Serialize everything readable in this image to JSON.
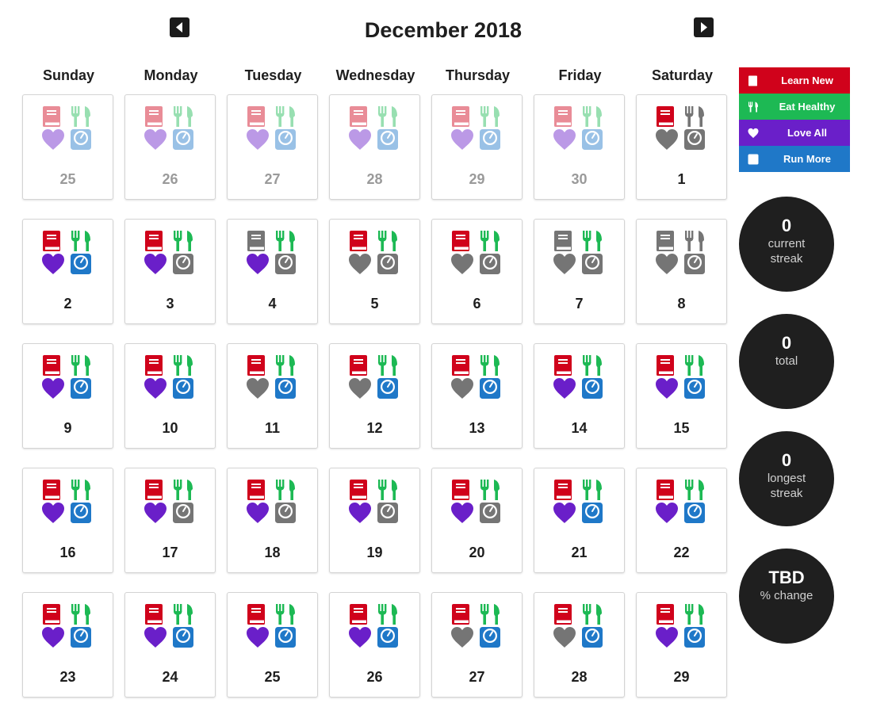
{
  "header": {
    "title": "December 2018",
    "prev_icon": "caret-left-icon",
    "next_icon": "caret-right-icon"
  },
  "weekdays": [
    "Sunday",
    "Monday",
    "Tuesday",
    "Wednesday",
    "Thursday",
    "Friday",
    "Saturday"
  ],
  "colors": {
    "learn": "#d0021b",
    "eat": "#1db954",
    "love": "#6a1fc9",
    "run": "#1f78c8",
    "off": "#757575",
    "stat_bg": "#1f1f1f"
  },
  "legend": [
    {
      "key": "learn",
      "label": "Learn New",
      "color": "#d0021b",
      "icon": "book-icon"
    },
    {
      "key": "eat",
      "label": "Eat Healthy",
      "color": "#1db954",
      "icon": "fork-knife-icon"
    },
    {
      "key": "love",
      "label": "Love All",
      "color": "#6a1fc9",
      "icon": "heart-icon"
    },
    {
      "key": "run",
      "label": "Run More",
      "color": "#1f78c8",
      "icon": "scale-icon"
    }
  ],
  "stats": [
    {
      "value": "0",
      "label": "current streak"
    },
    {
      "value": "0",
      "label": "total"
    },
    {
      "value": "0",
      "label": "longest streak"
    },
    {
      "value": "TBD",
      "label": "% change"
    }
  ],
  "days": [
    {
      "date": "25",
      "muted": true,
      "learn": true,
      "eat": true,
      "love": true,
      "run": true
    },
    {
      "date": "26",
      "muted": true,
      "learn": true,
      "eat": true,
      "love": true,
      "run": true
    },
    {
      "date": "27",
      "muted": true,
      "learn": true,
      "eat": true,
      "love": true,
      "run": true
    },
    {
      "date": "28",
      "muted": true,
      "learn": true,
      "eat": true,
      "love": true,
      "run": true
    },
    {
      "date": "29",
      "muted": true,
      "learn": true,
      "eat": true,
      "love": true,
      "run": true
    },
    {
      "date": "30",
      "muted": true,
      "learn": true,
      "eat": true,
      "love": true,
      "run": true
    },
    {
      "date": "1",
      "muted": false,
      "learn": true,
      "eat": false,
      "love": false,
      "run": false
    },
    {
      "date": "2",
      "muted": false,
      "learn": true,
      "eat": true,
      "love": true,
      "run": true
    },
    {
      "date": "3",
      "muted": false,
      "learn": true,
      "eat": true,
      "love": true,
      "run": false
    },
    {
      "date": "4",
      "muted": false,
      "learn": false,
      "eat": true,
      "love": true,
      "run": false
    },
    {
      "date": "5",
      "muted": false,
      "learn": true,
      "eat": true,
      "love": false,
      "run": false
    },
    {
      "date": "6",
      "muted": false,
      "learn": true,
      "eat": true,
      "love": false,
      "run": false
    },
    {
      "date": "7",
      "muted": false,
      "learn": false,
      "eat": true,
      "love": false,
      "run": false
    },
    {
      "date": "8",
      "muted": false,
      "learn": false,
      "eat": false,
      "love": false,
      "run": false
    },
    {
      "date": "9",
      "muted": false,
      "learn": true,
      "eat": true,
      "love": true,
      "run": true
    },
    {
      "date": "10",
      "muted": false,
      "learn": true,
      "eat": true,
      "love": true,
      "run": true
    },
    {
      "date": "11",
      "muted": false,
      "learn": true,
      "eat": true,
      "love": false,
      "run": true
    },
    {
      "date": "12",
      "muted": false,
      "learn": true,
      "eat": true,
      "love": false,
      "run": true
    },
    {
      "date": "13",
      "muted": false,
      "learn": true,
      "eat": true,
      "love": false,
      "run": true
    },
    {
      "date": "14",
      "muted": false,
      "learn": true,
      "eat": true,
      "love": true,
      "run": true
    },
    {
      "date": "15",
      "muted": false,
      "learn": true,
      "eat": true,
      "love": true,
      "run": true
    },
    {
      "date": "16",
      "muted": false,
      "learn": true,
      "eat": true,
      "love": true,
      "run": true
    },
    {
      "date": "17",
      "muted": false,
      "learn": true,
      "eat": true,
      "love": true,
      "run": false
    },
    {
      "date": "18",
      "muted": false,
      "learn": true,
      "eat": true,
      "love": true,
      "run": false
    },
    {
      "date": "19",
      "muted": false,
      "learn": true,
      "eat": true,
      "love": true,
      "run": false
    },
    {
      "date": "20",
      "muted": false,
      "learn": true,
      "eat": true,
      "love": true,
      "run": false
    },
    {
      "date": "21",
      "muted": false,
      "learn": true,
      "eat": true,
      "love": true,
      "run": true
    },
    {
      "date": "22",
      "muted": false,
      "learn": true,
      "eat": true,
      "love": true,
      "run": true
    },
    {
      "date": "23",
      "muted": false,
      "learn": true,
      "eat": true,
      "love": true,
      "run": true
    },
    {
      "date": "24",
      "muted": false,
      "learn": true,
      "eat": true,
      "love": true,
      "run": true
    },
    {
      "date": "25",
      "muted": false,
      "learn": true,
      "eat": true,
      "love": true,
      "run": true
    },
    {
      "date": "26",
      "muted": false,
      "learn": true,
      "eat": true,
      "love": true,
      "run": true
    },
    {
      "date": "27",
      "muted": false,
      "learn": true,
      "eat": true,
      "love": false,
      "run": true
    },
    {
      "date": "28",
      "muted": false,
      "learn": true,
      "eat": true,
      "love": false,
      "run": true
    },
    {
      "date": "29",
      "muted": false,
      "learn": true,
      "eat": true,
      "love": true,
      "run": true
    }
  ]
}
